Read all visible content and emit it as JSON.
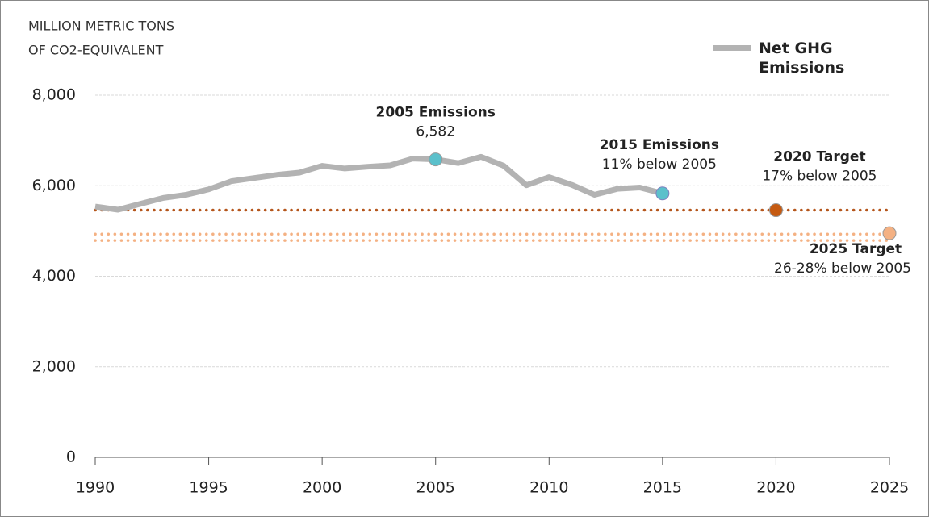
{
  "chart_data": {
    "type": "line",
    "y_label": [
      "MILLION METRIC TONS",
      "OF CO2-EQUIVALENT"
    ],
    "xlim": [
      1990,
      2025
    ],
    "xticks": [
      1990,
      1995,
      2000,
      2005,
      2010,
      2015,
      2020,
      2025
    ],
    "ylim": [
      0,
      8000
    ],
    "yticks": [
      0,
      {
        "value": 2000,
        "label": "2,000"
      },
      {
        "value": 4000,
        "label": "4,000"
      },
      {
        "value": 6000,
        "label": "6,000"
      },
      {
        "value": 8000,
        "label": "8,000"
      }
    ],
    "grid": true,
    "legend": "top-right",
    "series": [
      {
        "name": "Net GHG Emissions",
        "color": "#b3b3b3",
        "x": [
          1990,
          1991,
          1992,
          1993,
          1994,
          1995,
          1996,
          1997,
          1998,
          1999,
          2000,
          2001,
          2002,
          2003,
          2004,
          2005,
          2006,
          2007,
          2008,
          2009,
          2010,
          2011,
          2012,
          2013,
          2014,
          2015
        ],
        "values": [
          5540,
          5470,
          5600,
          5730,
          5800,
          5920,
          6100,
          6170,
          6240,
          6290,
          6440,
          6380,
          6420,
          6450,
          6600,
          6582,
          6500,
          6640,
          6440,
          6010,
          6190,
          6020,
          5800,
          5930,
          5960,
          5830
        ]
      }
    ],
    "reference_lines": [
      {
        "value": 5460,
        "color": "#b5561c"
      },
      {
        "value": 4930,
        "color": "#f4b183"
      },
      {
        "value": 4790,
        "color": "#f4b183"
      }
    ],
    "annotations": [
      {
        "x": 2005,
        "y": 6582,
        "title": "2005 Emissions",
        "text": "6,582",
        "color": "#5bc0cb"
      },
      {
        "x": 2015,
        "y": 5830,
        "title": "2015 Emissions",
        "text": "11% below 2005",
        "color": "#5bc0cb"
      },
      {
        "x": 2020,
        "y": 5460,
        "title": "2020 Target",
        "text": "17% below 2005",
        "color": "#c55a11"
      },
      {
        "x": 2025,
        "y": 4950,
        "title": "2025 Target",
        "text": "26-28% below 2005",
        "color": "#f4b183"
      }
    ]
  }
}
